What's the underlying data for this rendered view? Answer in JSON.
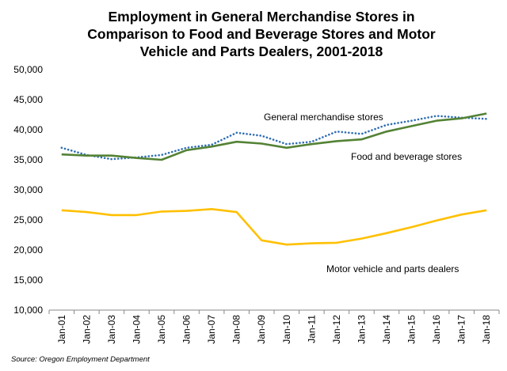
{
  "chart_data": {
    "type": "line",
    "title_lines": [
      "Employment in General Merchandise Stores in",
      "Comparison to Food and Beverage Stores and Motor",
      "Vehicle and Parts Dealers, 2001-2018"
    ],
    "categories": [
      "Jan-01",
      "Jan-02",
      "Jan-03",
      "Jan-04",
      "Jan-05",
      "Jan-06",
      "Jan-07",
      "Jan-08",
      "Jan-09",
      "Jan-10",
      "Jan-11",
      "Jan-12",
      "Jan-13",
      "Jan-14",
      "Jan-15",
      "Jan-16",
      "Jan-17",
      "Jan-18"
    ],
    "ylim": [
      10000,
      50000
    ],
    "yticks": [
      "10,000",
      "15,000",
      "20,000",
      "25,000",
      "30,000",
      "35,000",
      "40,000",
      "45,000",
      "50,000"
    ],
    "ytick_values": [
      10000,
      15000,
      20000,
      25000,
      30000,
      35000,
      40000,
      45000,
      50000
    ],
    "grid": false,
    "legend": "none",
    "series": [
      {
        "name": "General merchandise stores",
        "color": "#2E6DB4",
        "style": "dotted",
        "values": [
          37000,
          35800,
          35100,
          35400,
          35800,
          37000,
          37500,
          39500,
          39000,
          37600,
          38000,
          39700,
          39300,
          40800,
          41500,
          42300,
          42000,
          41800
        ]
      },
      {
        "name": "Food and beverage stores",
        "color": "#548235",
        "style": "solid",
        "values": [
          35900,
          35700,
          35700,
          35300,
          35000,
          36600,
          37200,
          38000,
          37700,
          37000,
          37600,
          38100,
          38400,
          39700,
          40600,
          41500,
          41900,
          42700
        ]
      },
      {
        "name": "Motor vehicle and parts dealers",
        "color": "#FFC000",
        "style": "solid",
        "values": [
          26600,
          26300,
          25800,
          25800,
          26400,
          26500,
          26800,
          26300,
          21600,
          20900,
          21100,
          21200,
          21900,
          22800,
          23800,
          24900,
          25900,
          26600
        ]
      }
    ],
    "annotations": [
      {
        "text": "General merchandise stores",
        "series": 0
      },
      {
        "text": "Food and beverage stores",
        "series": 1
      },
      {
        "text": "Motor vehicle and parts dealers",
        "series": 2
      }
    ],
    "source": "Source: Oregon Employment Department"
  }
}
